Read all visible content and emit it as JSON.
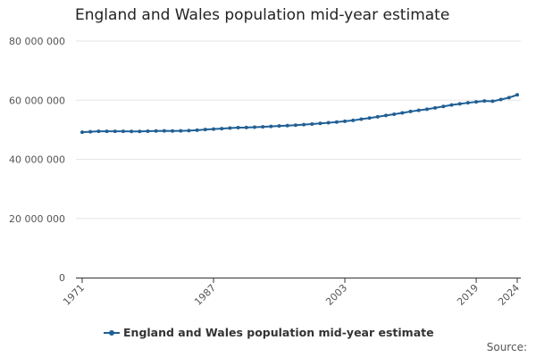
{
  "title": "England and Wales population mid-year estimate",
  "source_label": "Source:",
  "colors": {
    "series": "#206095",
    "grid": "#e6e6e6",
    "axis": "#333333"
  },
  "chart_data": {
    "type": "line",
    "title": "England and Wales population mid-year estimate",
    "xlabel": "",
    "ylabel": "",
    "x": [
      1971,
      1972,
      1973,
      1974,
      1975,
      1976,
      1977,
      1978,
      1979,
      1980,
      1981,
      1982,
      1983,
      1984,
      1985,
      1986,
      1987,
      1988,
      1989,
      1990,
      1991,
      1992,
      1993,
      1994,
      1995,
      1996,
      1997,
      1998,
      1999,
      2000,
      2001,
      2002,
      2003,
      2004,
      2005,
      2006,
      2007,
      2008,
      2009,
      2010,
      2011,
      2012,
      2013,
      2014,
      2015,
      2016,
      2017,
      2018,
      2019,
      2020,
      2021,
      2022,
      2023,
      2024
    ],
    "series": [
      {
        "name": "England and Wales population mid-year estimate",
        "values": [
          49152000,
          49327000,
          49459000,
          49468000,
          49470000,
          49459000,
          49440000,
          49443000,
          49508000,
          49603000,
          49634000,
          49582000,
          49617000,
          49713000,
          49861000,
          50075000,
          50243000,
          50393000,
          50562000,
          50719000,
          50748000,
          50876000,
          50986000,
          51116000,
          51272000,
          51410000,
          51560000,
          51720000,
          51933000,
          52140000,
          52360000,
          52602000,
          52863000,
          53152000,
          53575000,
          53951000,
          54387000,
          54842000,
          55235000,
          55692000,
          56171000,
          56568000,
          56948000,
          57409000,
          57885000,
          58381000,
          58745000,
          59116000,
          59440000,
          59720000,
          59642000,
          60238000,
          60854000,
          61812000
        ]
      }
    ],
    "x_tick_labels": [
      "1971",
      "1987",
      "2003",
      "2019",
      "2024"
    ],
    "y_tick_labels": [
      "0",
      "20 000 000",
      "40 000 000",
      "60 000 000",
      "80 000 000"
    ],
    "y_ticks": [
      0,
      20000000,
      40000000,
      60000000,
      80000000
    ],
    "ylim": [
      0,
      80000000
    ],
    "xlim": [
      1971,
      2024
    ],
    "grid": true,
    "legend_position": "bottom"
  }
}
